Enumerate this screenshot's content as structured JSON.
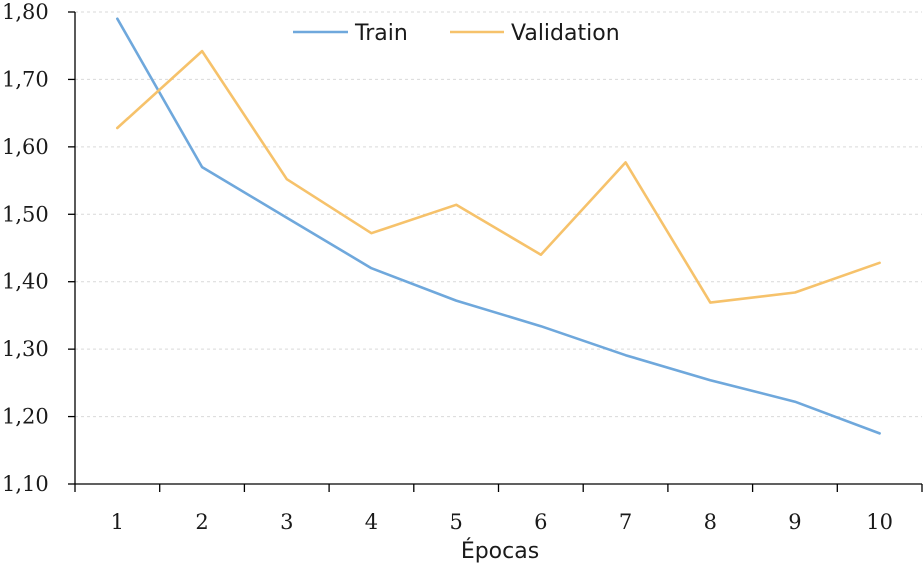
{
  "chart_data": {
    "type": "line",
    "title": "",
    "xlabel": "Épocas",
    "ylabel": "",
    "categories": [
      "1",
      "2",
      "3",
      "4",
      "5",
      "6",
      "7",
      "8",
      "9",
      "10"
    ],
    "ylim": [
      1.1,
      1.8
    ],
    "ytick_values": [
      1.1,
      1.2,
      1.3,
      1.4,
      1.5,
      1.6,
      1.7,
      1.8
    ],
    "ytick_labels": [
      "1,10",
      "1,20",
      "1,30",
      "1,40",
      "1,50",
      "1,60",
      "1,70",
      "1,80"
    ],
    "grid": "horizontal dashed",
    "legend_position": "top-center",
    "series": [
      {
        "name": "Train",
        "color": "#6fa8dc",
        "values": [
          1.79,
          1.57,
          1.495,
          1.42,
          1.372,
          1.334,
          1.291,
          1.254,
          1.222,
          1.175
        ]
      },
      {
        "name": "Validation",
        "color": "#f6c26b",
        "values": [
          1.628,
          1.742,
          1.552,
          1.472,
          1.514,
          1.44,
          1.577,
          1.369,
          1.384,
          1.428
        ]
      }
    ]
  }
}
